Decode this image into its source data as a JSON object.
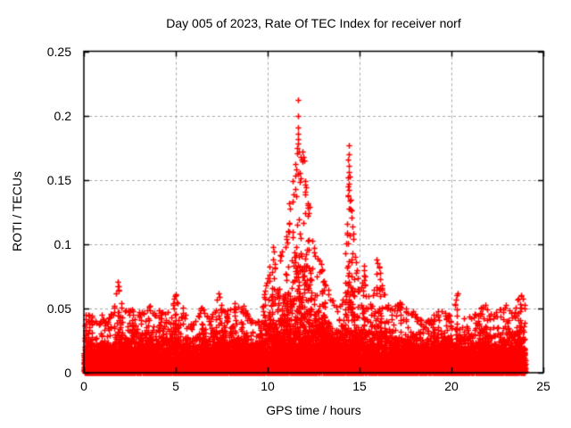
{
  "chart_data": {
    "type": "scatter",
    "title": "Day 005 of 2023, Rate Of TEC Index for receiver norf",
    "xlabel": "GPS time / hours",
    "ylabel": "ROTI / TECUs",
    "xlim": [
      0,
      25
    ],
    "ylim": [
      0,
      0.25
    ],
    "xticks": [
      0,
      5,
      10,
      15,
      20,
      25
    ],
    "yticks": [
      0,
      0.05,
      0.1,
      0.15,
      0.2,
      0.25
    ],
    "ytick_labels": [
      "0",
      "0.05",
      "0.1",
      "0.15",
      "0.2",
      "0.25"
    ],
    "grid": "dashed",
    "legend": "none",
    "marker": {
      "glyph": "+",
      "color": "#ff0000",
      "size": 7,
      "stroke": 1.5
    },
    "frame_color": "#000000",
    "grid_color": "#a6a6a6",
    "data_time_span_hours": [
      0,
      24
    ],
    "baseline_band_tecus": [
      0,
      0.03
    ],
    "envelope_max_roti": [
      [
        0.0,
        0.055
      ],
      [
        0.25,
        0.048
      ],
      [
        0.5,
        0.044
      ],
      [
        0.75,
        0.04
      ],
      [
        1.0,
        0.046
      ],
      [
        1.3,
        0.042
      ],
      [
        1.6,
        0.05
      ],
      [
        1.85,
        0.072
      ],
      [
        2.1,
        0.05
      ],
      [
        2.5,
        0.053
      ],
      [
        2.8,
        0.046
      ],
      [
        3.1,
        0.05
      ],
      [
        3.5,
        0.056
      ],
      [
        3.8,
        0.048
      ],
      [
        4.1,
        0.052
      ],
      [
        4.5,
        0.044
      ],
      [
        4.8,
        0.058
      ],
      [
        5.0,
        0.062
      ],
      [
        5.3,
        0.056
      ],
      [
        5.6,
        0.042
      ],
      [
        5.9,
        0.038
      ],
      [
        6.2,
        0.046
      ],
      [
        6.5,
        0.053
      ],
      [
        6.8,
        0.042
      ],
      [
        7.1,
        0.048
      ],
      [
        7.3,
        0.062
      ],
      [
        7.6,
        0.052
      ],
      [
        7.9,
        0.05
      ],
      [
        8.2,
        0.056
      ],
      [
        8.5,
        0.05
      ],
      [
        8.8,
        0.055
      ],
      [
        9.1,
        0.042
      ],
      [
        9.4,
        0.038
      ],
      [
        9.7,
        0.055
      ],
      [
        10.0,
        0.075
      ],
      [
        10.2,
        0.098
      ],
      [
        10.45,
        0.085
      ],
      [
        10.7,
        0.092
      ],
      [
        11.0,
        0.108
      ],
      [
        11.2,
        0.135
      ],
      [
        11.35,
        0.15
      ],
      [
        11.5,
        0.168
      ],
      [
        11.65,
        0.19
      ],
      [
        11.8,
        0.175
      ],
      [
        11.95,
        0.16
      ],
      [
        12.1,
        0.148
      ],
      [
        12.3,
        0.132
      ],
      [
        12.5,
        0.1
      ],
      [
        12.7,
        0.093
      ],
      [
        12.9,
        0.085
      ],
      [
        13.1,
        0.075
      ],
      [
        13.35,
        0.065
      ],
      [
        13.6,
        0.055
      ],
      [
        13.85,
        0.05
      ],
      [
        14.1,
        0.062
      ],
      [
        14.3,
        0.115
      ],
      [
        14.42,
        0.165
      ],
      [
        14.55,
        0.132
      ],
      [
        14.7,
        0.105
      ],
      [
        14.85,
        0.082
      ],
      [
        15.05,
        0.06
      ],
      [
        15.2,
        0.085
      ],
      [
        15.45,
        0.062
      ],
      [
        15.7,
        0.055
      ],
      [
        15.95,
        0.09
      ],
      [
        16.15,
        0.08
      ],
      [
        16.4,
        0.058
      ],
      [
        16.7,
        0.05
      ],
      [
        17.0,
        0.055
      ],
      [
        17.3,
        0.056
      ],
      [
        17.6,
        0.048
      ],
      [
        17.9,
        0.05
      ],
      [
        18.2,
        0.044
      ],
      [
        18.5,
        0.04
      ],
      [
        18.8,
        0.042
      ],
      [
        19.1,
        0.046
      ],
      [
        19.4,
        0.05
      ],
      [
        19.7,
        0.047
      ],
      [
        20.0,
        0.044
      ],
      [
        20.3,
        0.062
      ],
      [
        20.6,
        0.05
      ],
      [
        20.9,
        0.044
      ],
      [
        21.2,
        0.047
      ],
      [
        21.5,
        0.05
      ],
      [
        21.8,
        0.058
      ],
      [
        22.1,
        0.046
      ],
      [
        22.4,
        0.049
      ],
      [
        22.7,
        0.051
      ],
      [
        23.0,
        0.053
      ],
      [
        23.3,
        0.048
      ],
      [
        23.6,
        0.058
      ],
      [
        23.85,
        0.062
      ],
      [
        24.0,
        0.055
      ]
    ],
    "outlier_points": [
      [
        11.65,
        0.212
      ],
      [
        11.64,
        0.2
      ],
      [
        11.63,
        0.191
      ],
      [
        11.66,
        0.186
      ],
      [
        11.65,
        0.182
      ],
      [
        11.67,
        0.178
      ],
      [
        11.62,
        0.175
      ],
      [
        11.68,
        0.172
      ],
      [
        11.9,
        0.172
      ],
      [
        11.95,
        0.168
      ],
      [
        12.0,
        0.165
      ],
      [
        11.5,
        0.162
      ],
      [
        11.55,
        0.158
      ],
      [
        11.75,
        0.155
      ],
      [
        11.82,
        0.151
      ],
      [
        12.05,
        0.149
      ],
      [
        12.1,
        0.144
      ],
      [
        11.42,
        0.139
      ],
      [
        11.38,
        0.133
      ],
      [
        12.18,
        0.128
      ],
      [
        12.25,
        0.124
      ],
      [
        14.4,
        0.177
      ],
      [
        14.42,
        0.17
      ],
      [
        14.38,
        0.166
      ],
      [
        14.41,
        0.161
      ],
      [
        14.43,
        0.156
      ],
      [
        14.39,
        0.152
      ],
      [
        14.4,
        0.147
      ],
      [
        14.44,
        0.142
      ],
      [
        14.37,
        0.138
      ],
      [
        14.45,
        0.134
      ],
      [
        14.5,
        0.127
      ],
      [
        14.55,
        0.121
      ],
      [
        14.6,
        0.114
      ],
      [
        14.33,
        0.109
      ],
      [
        14.66,
        0.104
      ],
      [
        10.28,
        0.098
      ],
      [
        10.33,
        0.094
      ],
      [
        10.75,
        0.091
      ],
      [
        12.52,
        0.097
      ],
      [
        12.58,
        0.091
      ],
      [
        12.72,
        0.089
      ],
      [
        15.92,
        0.088
      ],
      [
        15.98,
        0.085
      ],
      [
        16.05,
        0.082
      ],
      [
        15.25,
        0.083
      ],
      [
        15.3,
        0.075
      ],
      [
        1.85,
        0.071
      ],
      [
        1.87,
        0.067
      ],
      [
        1.9,
        0.064
      ],
      [
        7.32,
        0.062
      ],
      [
        5.02,
        0.061
      ],
      [
        20.32,
        0.062
      ],
      [
        23.8,
        0.06
      ],
      [
        13.0,
        0.071
      ],
      [
        11.0,
        0.106
      ],
      [
        11.05,
        0.101
      ],
      [
        16.1,
        0.078
      ]
    ]
  }
}
